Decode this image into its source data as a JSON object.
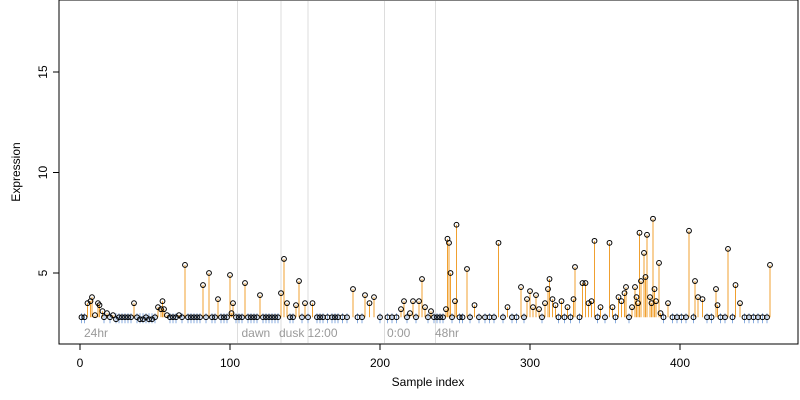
{
  "chart_data": {
    "type": "scatter",
    "xlabel": "Sample index",
    "ylabel": "Expression",
    "xlim": [
      0,
      460
    ],
    "ylim": [
      1.5,
      19
    ],
    "x_ticks": [
      0,
      100,
      200,
      300,
      400
    ],
    "y_ticks": [
      5,
      10,
      15
    ],
    "baseline": 2.8,
    "grid": false,
    "phase_dividers": [
      105,
      134,
      152,
      203,
      237
    ],
    "phase_labels": [
      {
        "x": 2,
        "label": "24hr"
      },
      {
        "x": 107,
        "label": "dawn"
      },
      {
        "x": 132,
        "label": "dusk"
      },
      {
        "x": 151,
        "label": "12:00"
      },
      {
        "x": 204,
        "label": "0:00"
      },
      {
        "x": 236,
        "label": "48hr"
      }
    ],
    "colors": {
      "points": "#000000",
      "stems_high": "#f0a030",
      "stems_baseline": "#8aaee0",
      "stems_gray": "#a0a0a0",
      "dividers": "#dddddd",
      "phase_text": "#9a9a9a"
    },
    "series": [
      {
        "values": [
          [
            1,
            2.8
          ],
          [
            3,
            2.8
          ],
          [
            5,
            3.5
          ],
          [
            7,
            3.6
          ],
          [
            8,
            3.8
          ],
          [
            10,
            2.9
          ],
          [
            12,
            3.5
          ],
          [
            13,
            3.4
          ],
          [
            15,
            3.1
          ],
          [
            16,
            2.8
          ],
          [
            18,
            3.0
          ],
          [
            20,
            2.8
          ],
          [
            22,
            2.9
          ],
          [
            24,
            2.7
          ],
          [
            26,
            2.8
          ],
          [
            28,
            2.8
          ],
          [
            30,
            2.8
          ],
          [
            32,
            2.8
          ],
          [
            34,
            2.8
          ],
          [
            36,
            3.5
          ],
          [
            38,
            2.8
          ],
          [
            40,
            2.7
          ],
          [
            42,
            2.7
          ],
          [
            44,
            2.8
          ],
          [
            46,
            2.7
          ],
          [
            48,
            2.7
          ],
          [
            50,
            2.8
          ],
          [
            52,
            3.3
          ],
          [
            54,
            3.2
          ],
          [
            55,
            3.6
          ],
          [
            56,
            3.2
          ],
          [
            58,
            2.9
          ],
          [
            60,
            2.8
          ],
          [
            62,
            2.8
          ],
          [
            64,
            2.8
          ],
          [
            66,
            2.9
          ],
          [
            68,
            2.8
          ],
          [
            70,
            5.4
          ],
          [
            72,
            2.8
          ],
          [
            74,
            2.8
          ],
          [
            76,
            2.8
          ],
          [
            78,
            2.8
          ],
          [
            80,
            2.8
          ],
          [
            82,
            4.4
          ],
          [
            84,
            2.8
          ],
          [
            86,
            5.0
          ],
          [
            88,
            2.8
          ],
          [
            90,
            2.8
          ],
          [
            92,
            3.7
          ],
          [
            94,
            2.8
          ],
          [
            96,
            2.8
          ],
          [
            98,
            2.8
          ],
          [
            100,
            4.9
          ],
          [
            101,
            3.0
          ],
          [
            102,
            3.5
          ],
          [
            104,
            2.8
          ],
          [
            106,
            2.8
          ],
          [
            108,
            2.8
          ],
          [
            110,
            4.5
          ],
          [
            112,
            2.8
          ],
          [
            114,
            2.8
          ],
          [
            116,
            2.8
          ],
          [
            118,
            2.8
          ],
          [
            120,
            3.9
          ],
          [
            122,
            2.8
          ],
          [
            124,
            2.8
          ],
          [
            126,
            2.8
          ],
          [
            128,
            2.8
          ],
          [
            130,
            2.8
          ],
          [
            132,
            2.8
          ],
          [
            134,
            4.0
          ],
          [
            136,
            5.7
          ],
          [
            138,
            3.5
          ],
          [
            140,
            2.8
          ],
          [
            142,
            2.8
          ],
          [
            144,
            3.4
          ],
          [
            146,
            4.6
          ],
          [
            148,
            2.8
          ],
          [
            150,
            3.5
          ],
          [
            152,
            2.8
          ],
          [
            155,
            3.5
          ],
          [
            158,
            2.8
          ],
          [
            160,
            2.8
          ],
          [
            162,
            2.8
          ],
          [
            165,
            2.8
          ],
          [
            168,
            2.8
          ],
          [
            170,
            2.8
          ],
          [
            172,
            2.8
          ],
          [
            175,
            2.8
          ],
          [
            178,
            2.8
          ],
          [
            182,
            4.2
          ],
          [
            185,
            2.8
          ],
          [
            188,
            2.8
          ],
          [
            190,
            3.9
          ],
          [
            193,
            3.5
          ],
          [
            196,
            3.8
          ],
          [
            200,
            2.8
          ],
          [
            205,
            2.8
          ],
          [
            208,
            2.8
          ],
          [
            211,
            2.8
          ],
          [
            214,
            3.2
          ],
          [
            216,
            3.6
          ],
          [
            218,
            2.8
          ],
          [
            220,
            3.0
          ],
          [
            222,
            3.6
          ],
          [
            224,
            2.8
          ],
          [
            226,
            3.6
          ],
          [
            228,
            4.7
          ],
          [
            230,
            3.3
          ],
          [
            232,
            2.8
          ],
          [
            234,
            3.1
          ],
          [
            236,
            2.8
          ],
          [
            238,
            2.8
          ],
          [
            240,
            2.8
          ],
          [
            242,
            2.8
          ],
          [
            244,
            3.2
          ],
          [
            245,
            6.7
          ],
          [
            246,
            6.5
          ],
          [
            247,
            5.0
          ],
          [
            248,
            2.8
          ],
          [
            250,
            3.6
          ],
          [
            251,
            7.4
          ],
          [
            253,
            2.8
          ],
          [
            255,
            2.8
          ],
          [
            258,
            5.2
          ],
          [
            260,
            2.8
          ],
          [
            263,
            3.4
          ],
          [
            266,
            2.8
          ],
          [
            270,
            2.8
          ],
          [
            273,
            2.8
          ],
          [
            276,
            2.8
          ],
          [
            279,
            6.5
          ],
          [
            282,
            2.8
          ],
          [
            285,
            3.3
          ],
          [
            288,
            2.8
          ],
          [
            291,
            2.8
          ],
          [
            294,
            4.3
          ],
          [
            296,
            2.8
          ],
          [
            298,
            3.7
          ],
          [
            300,
            4.1
          ],
          [
            302,
            3.3
          ],
          [
            304,
            3.9
          ],
          [
            306,
            3.2
          ],
          [
            308,
            2.8
          ],
          [
            310,
            3.5
          ],
          [
            312,
            4.2
          ],
          [
            313,
            4.7
          ],
          [
            315,
            3.7
          ],
          [
            317,
            3.4
          ],
          [
            319,
            2.8
          ],
          [
            321,
            3.6
          ],
          [
            323,
            2.8
          ],
          [
            325,
            3.3
          ],
          [
            327,
            2.8
          ],
          [
            329,
            3.7
          ],
          [
            330,
            5.3
          ],
          [
            333,
            2.8
          ],
          [
            335,
            4.5
          ],
          [
            337,
            4.5
          ],
          [
            339,
            3.5
          ],
          [
            341,
            3.6
          ],
          [
            343,
            6.6
          ],
          [
            345,
            2.8
          ],
          [
            347,
            3.3
          ],
          [
            350,
            2.8
          ],
          [
            353,
            6.5
          ],
          [
            355,
            3.3
          ],
          [
            357,
            2.8
          ],
          [
            359,
            3.8
          ],
          [
            361,
            3.6
          ],
          [
            363,
            4.0
          ],
          [
            364,
            4.3
          ],
          [
            366,
            2.8
          ],
          [
            368,
            3.3
          ],
          [
            370,
            4.3
          ],
          [
            371,
            3.8
          ],
          [
            372,
            3.5
          ],
          [
            373,
            7.0
          ],
          [
            374,
            4.6
          ],
          [
            376,
            6.0
          ],
          [
            377,
            4.8
          ],
          [
            378,
            6.9
          ],
          [
            380,
            3.8
          ],
          [
            381,
            3.5
          ],
          [
            382,
            7.7
          ],
          [
            383,
            4.2
          ],
          [
            384,
            3.6
          ],
          [
            386,
            5.5
          ],
          [
            387,
            3.0
          ],
          [
            389,
            2.8
          ],
          [
            392,
            3.5
          ],
          [
            395,
            2.8
          ],
          [
            398,
            2.8
          ],
          [
            401,
            2.8
          ],
          [
            404,
            2.8
          ],
          [
            406,
            7.1
          ],
          [
            409,
            2.8
          ],
          [
            410,
            4.6
          ],
          [
            412,
            3.8
          ],
          [
            415,
            3.7
          ],
          [
            418,
            2.8
          ],
          [
            421,
            2.8
          ],
          [
            424,
            4.2
          ],
          [
            425,
            3.4
          ],
          [
            427,
            2.8
          ],
          [
            430,
            2.8
          ],
          [
            432,
            6.2
          ],
          [
            435,
            2.8
          ],
          [
            437,
            4.4
          ],
          [
            440,
            3.5
          ],
          [
            443,
            2.8
          ],
          [
            446,
            2.8
          ],
          [
            449,
            2.8
          ],
          [
            452,
            2.8
          ],
          [
            455,
            2.8
          ],
          [
            458,
            2.8
          ],
          [
            460,
            5.4
          ]
        ]
      }
    ]
  }
}
